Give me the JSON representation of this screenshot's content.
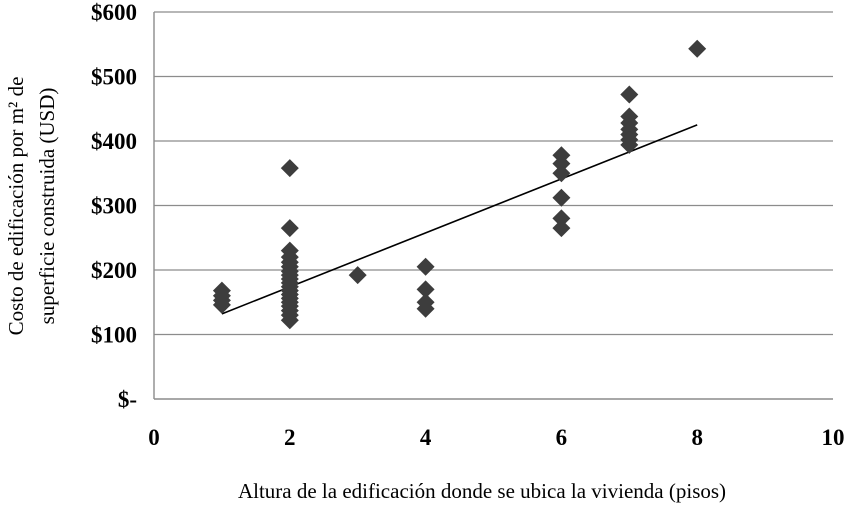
{
  "chart_data": {
    "type": "scatter",
    "xlabel": "Altura de la edificación donde se ubica la vivienda (pisos)",
    "ylabel_lines": [
      "Costo de edificación por m² de",
      "superficie construida (USD)"
    ],
    "xlim": [
      0,
      10
    ],
    "ylim": [
      0,
      600
    ],
    "x_ticks": [
      0,
      2,
      4,
      6,
      8,
      10
    ],
    "x_tick_labels": [
      "0",
      "2",
      "4",
      "6",
      "8",
      "10"
    ],
    "y_ticks": [
      0,
      100,
      200,
      300,
      400,
      500,
      600
    ],
    "y_tick_labels": [
      "$-",
      "$100",
      "$200",
      "$300",
      "$400",
      "$500",
      "$600"
    ],
    "grid": true,
    "marker": "diamond",
    "marker_color": "#3d3d3d",
    "points": [
      {
        "x": 1,
        "y": 168
      },
      {
        "x": 1,
        "y": 160
      },
      {
        "x": 1,
        "y": 153
      },
      {
        "x": 1,
        "y": 146
      },
      {
        "x": 2,
        "y": 358
      },
      {
        "x": 2,
        "y": 265
      },
      {
        "x": 2,
        "y": 230
      },
      {
        "x": 2,
        "y": 220
      },
      {
        "x": 2,
        "y": 212
      },
      {
        "x": 2,
        "y": 205
      },
      {
        "x": 2,
        "y": 198
      },
      {
        "x": 2,
        "y": 192
      },
      {
        "x": 2,
        "y": 186
      },
      {
        "x": 2,
        "y": 180
      },
      {
        "x": 2,
        "y": 174
      },
      {
        "x": 2,
        "y": 168
      },
      {
        "x": 2,
        "y": 162
      },
      {
        "x": 2,
        "y": 156
      },
      {
        "x": 2,
        "y": 150
      },
      {
        "x": 2,
        "y": 144
      },
      {
        "x": 2,
        "y": 137
      },
      {
        "x": 2,
        "y": 130
      },
      {
        "x": 2,
        "y": 122
      },
      {
        "x": 3,
        "y": 192
      },
      {
        "x": 4,
        "y": 205
      },
      {
        "x": 4,
        "y": 170
      },
      {
        "x": 4,
        "y": 150
      },
      {
        "x": 4,
        "y": 140
      },
      {
        "x": 6,
        "y": 378
      },
      {
        "x": 6,
        "y": 365
      },
      {
        "x": 6,
        "y": 350
      },
      {
        "x": 6,
        "y": 312
      },
      {
        "x": 6,
        "y": 280
      },
      {
        "x": 6,
        "y": 265
      },
      {
        "x": 7,
        "y": 472
      },
      {
        "x": 7,
        "y": 438
      },
      {
        "x": 7,
        "y": 428
      },
      {
        "x": 7,
        "y": 418
      },
      {
        "x": 7,
        "y": 410
      },
      {
        "x": 7,
        "y": 402
      },
      {
        "x": 7,
        "y": 394
      },
      {
        "x": 8,
        "y": 543
      }
    ],
    "trendline": {
      "x": [
        1,
        8
      ],
      "y": [
        132,
        425
      ]
    }
  }
}
